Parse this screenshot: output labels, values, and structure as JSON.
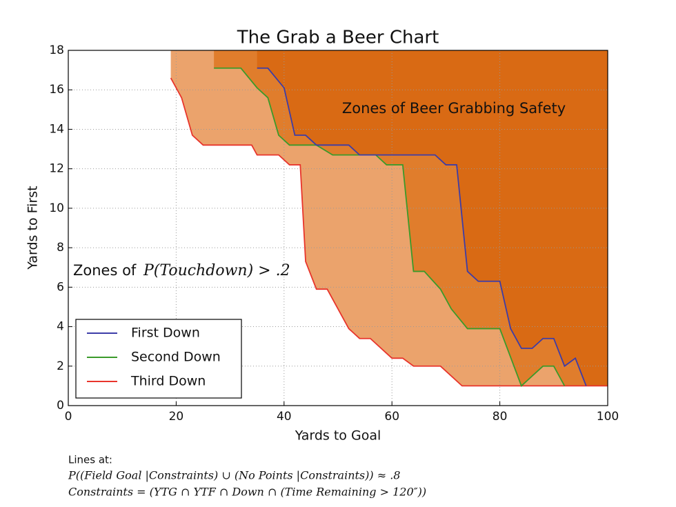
{
  "chart_data": {
    "type": "line",
    "title": "The Grab a Beer Chart",
    "x_label": "Yards to Goal",
    "y_label": "Yards to First",
    "xlim": [
      0,
      100
    ],
    "xticks": [
      0,
      20,
      40,
      60,
      80,
      100
    ],
    "ylim": [
      0,
      18
    ],
    "yticks": [
      0,
      2,
      4,
      6,
      8,
      10,
      12,
      14,
      16,
      18
    ],
    "grid": true,
    "legend": "lower left",
    "series": [
      {
        "name": "Third Down",
        "color": "#e8342b",
        "fill_color": "#eba36c",
        "x": [
          19,
          21,
          23,
          25,
          34,
          35,
          39,
          41,
          43,
          44,
          46,
          48,
          50,
          52,
          54,
          56,
          60,
          62,
          64,
          69,
          73,
          100
        ],
        "values": [
          16.6,
          15.6,
          13.7,
          13.2,
          13.2,
          12.7,
          12.7,
          12.2,
          12.2,
          7.3,
          5.9,
          5.9,
          4.9,
          3.9,
          3.4,
          3.4,
          2.4,
          2.4,
          2.0,
          2.0,
          1.0,
          1.0
        ]
      },
      {
        "name": "Second Down",
        "color": "#3a9a2a",
        "fill_color": "#e07d2c",
        "x": [
          27,
          32,
          35,
          37,
          39,
          41,
          46,
          49,
          57,
          59,
          62,
          64,
          66,
          69,
          71,
          74,
          80,
          84,
          86,
          88,
          90,
          92
        ],
        "values": [
          17.1,
          17.1,
          16.1,
          15.6,
          13.7,
          13.2,
          13.2,
          12.7,
          12.7,
          12.2,
          12.2,
          6.8,
          6.8,
          5.9,
          4.9,
          3.9,
          3.9,
          1.0,
          1.5,
          2.0,
          2.0,
          1.0
        ]
      },
      {
        "name": "First Down",
        "color": "#3c3ca8",
        "fill_color": "#d96a14",
        "x": [
          35,
          37,
          40,
          42,
          44,
          46,
          52,
          54,
          68,
          70,
          72,
          74,
          76,
          80,
          82,
          84,
          86,
          88,
          90,
          92,
          94,
          96
        ],
        "values": [
          17.1,
          17.1,
          16.1,
          13.7,
          13.7,
          13.2,
          13.2,
          12.7,
          12.7,
          12.2,
          12.2,
          6.8,
          6.3,
          6.3,
          3.9,
          2.9,
          2.9,
          3.4,
          3.4,
          2.0,
          2.4,
          1.0
        ]
      }
    ],
    "legend_order": [
      2,
      1,
      0
    ],
    "annotations": [
      "Zones of Beer Grabbing Safety",
      "Zones of ",
      "P(Touchdown) > .2"
    ],
    "footnotes": [
      "Lines at:",
      "P((Field Goal |Constraints) ∪ (No Points |Constraints)) ≈ .8",
      "Constraints = (YTG ∩ YTF ∩ Down ∩ (Time Remaining > 120″))"
    ]
  }
}
